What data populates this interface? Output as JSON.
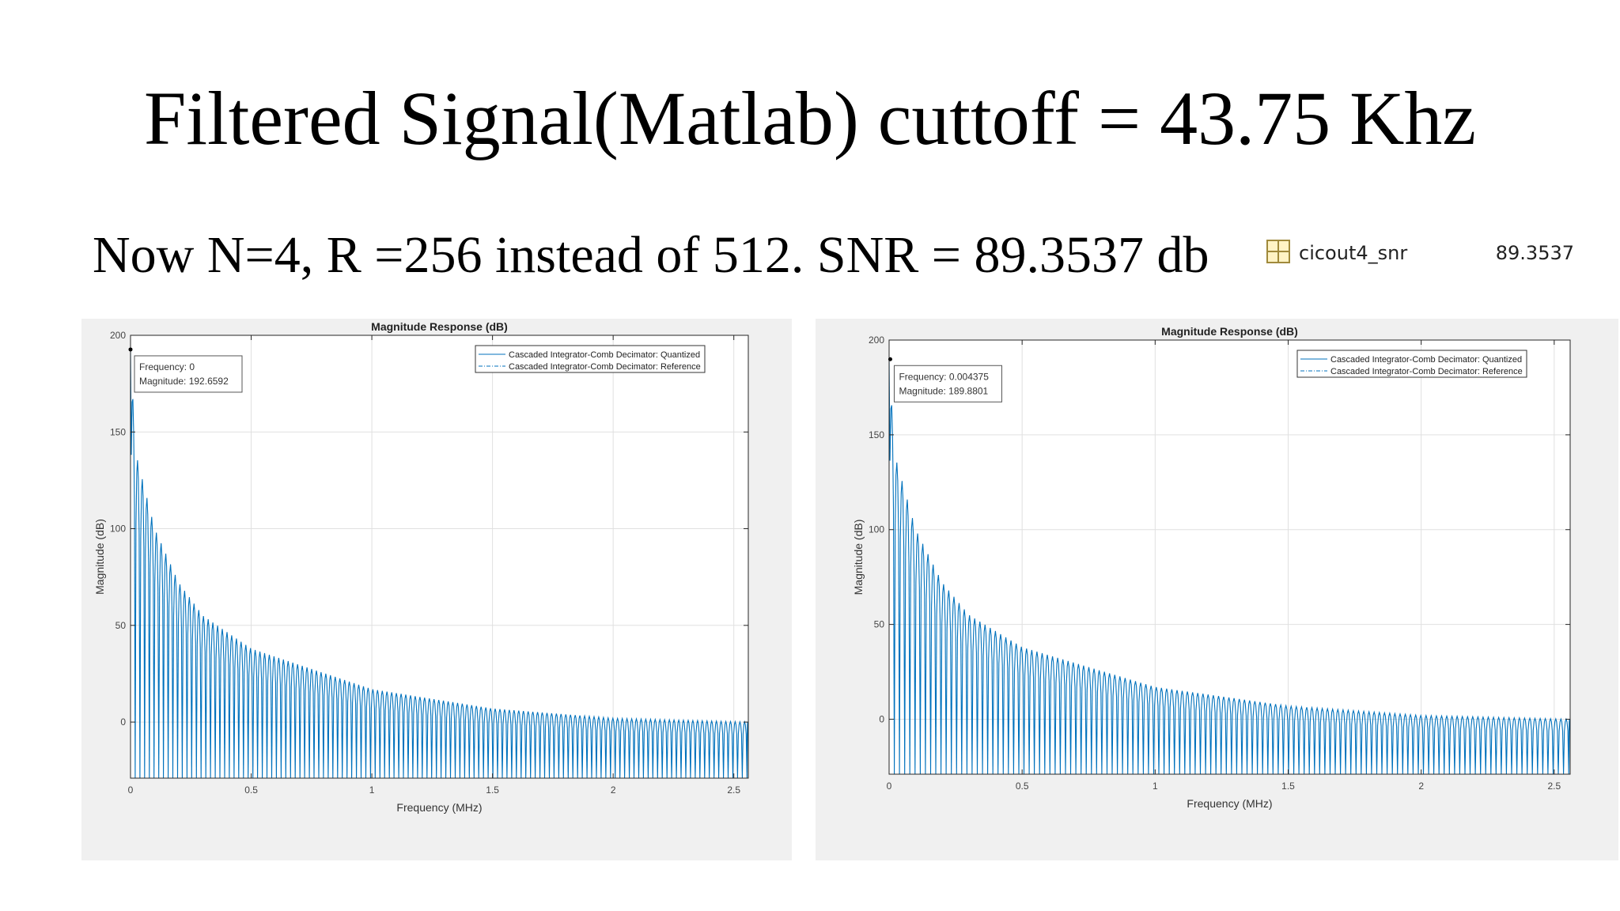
{
  "slide": {
    "title": "Filtered Signal(Matlab) cuttoff =  43.75 Khz",
    "subtitle": "Now N=4, R =256 instead of 512. SNR = 89.3537 db"
  },
  "workspace": {
    "icon": "matrix-variable-icon",
    "name": "cicout4_snr",
    "value": "89.3537"
  },
  "colors": {
    "series": "#0072bd",
    "axes": "#262626",
    "grid": "#e0e0e0",
    "panel": "#f0f0f0"
  },
  "chart_data": [
    {
      "type": "line",
      "title": "Magnitude Response (dB)",
      "xlabel": "Frequency (MHz)",
      "ylabel": "Magnitude (dB)",
      "xlim": [
        0,
        2.56
      ],
      "ylim": [
        -29,
        200
      ],
      "xticks": [
        "0",
        "0.5",
        "1",
        "1.5",
        "2",
        "2.5"
      ],
      "yticks": [
        "0",
        "50",
        "100",
        "150",
        "200"
      ],
      "grid": true,
      "legend_position": "top-right",
      "legend": [
        "Cascaded Integrator-Comb Decimator: Quantized",
        "Cascaded Integrator-Comb Decimator: Reference"
      ],
      "series": [
        {
          "name": "Cascaded Integrator-Comb Decimator: Quantized",
          "style": "solid"
        },
        {
          "name": "Cascaded Integrator-Comb Decimator: Reference",
          "style": "dash-dot"
        }
      ],
      "lobe_spacing_mhz": 0.0195,
      "peak_envelope": [
        [
          0,
          192.7
        ],
        [
          0.02,
          140
        ],
        [
          0.1,
          100
        ],
        [
          0.2,
          72
        ],
        [
          0.3,
          55
        ],
        [
          0.5,
          38
        ],
        [
          1,
          17
        ],
        [
          1.5,
          7
        ],
        [
          2,
          2
        ],
        [
          2.56,
          0
        ]
      ],
      "datatip": {
        "x": 0,
        "y": 192.6592,
        "lines": [
          "Frequency: 0",
          "Magnitude: 192.6592"
        ]
      }
    },
    {
      "type": "line",
      "title": "Magnitude Response (dB)",
      "xlabel": "Frequency (MHz)",
      "ylabel": "Magnitude (dB)",
      "xlim": [
        0,
        2.56
      ],
      "ylim": [
        -29,
        200
      ],
      "xticks": [
        "0",
        "0.5",
        "1",
        "1.5",
        "2",
        "2.5"
      ],
      "yticks": [
        "0",
        "50",
        "100",
        "150",
        "200"
      ],
      "grid": true,
      "legend_position": "top-right",
      "legend": [
        "Cascaded Integrator-Comb Decimator: Quantized",
        "Cascaded Integrator-Comb Decimator: Reference"
      ],
      "series": [
        {
          "name": "Cascaded Integrator-Comb Decimator: Quantized",
          "style": "solid"
        },
        {
          "name": "Cascaded Integrator-Comb Decimator: Reference",
          "style": "dash-dot"
        }
      ],
      "lobe_spacing_mhz": 0.0195,
      "peak_envelope": [
        [
          0,
          189.9
        ],
        [
          0.02,
          140
        ],
        [
          0.1,
          100
        ],
        [
          0.2,
          72
        ],
        [
          0.3,
          55
        ],
        [
          0.5,
          38
        ],
        [
          1,
          17
        ],
        [
          1.5,
          7
        ],
        [
          2,
          2
        ],
        [
          2.56,
          0
        ]
      ],
      "datatip": {
        "x": 0.004375,
        "y": 189.8801,
        "lines": [
          "Frequency: 0.004375",
          "Magnitude: 189.8801"
        ]
      }
    }
  ]
}
